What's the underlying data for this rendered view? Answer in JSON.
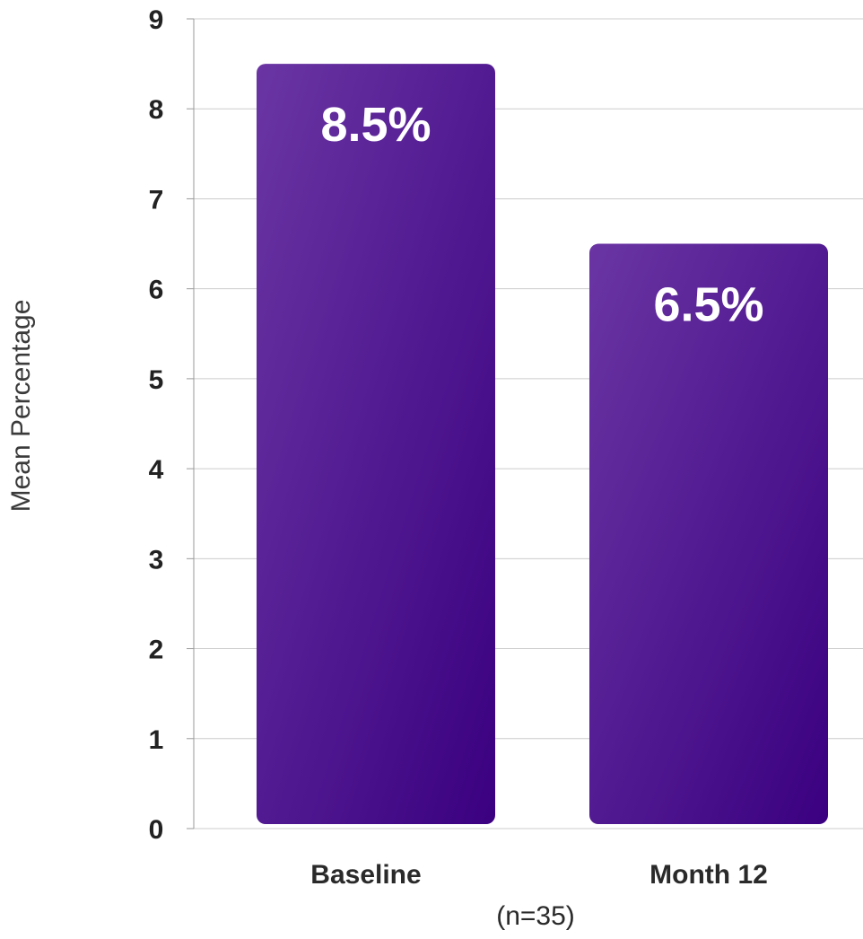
{
  "chart_data": {
    "type": "bar",
    "categories": [
      "Baseline",
      "Month 12"
    ],
    "values": [
      8.5,
      6.5
    ],
    "value_labels": [
      "8.5%",
      "6.5%"
    ],
    "ylabel": "Mean Percentage",
    "xlabel": "(n=35)",
    "ylim": [
      0,
      9
    ],
    "yticks": [
      "0",
      "1",
      "2",
      "3",
      "4",
      "5",
      "6",
      "7",
      "8",
      "9"
    ],
    "grid": true,
    "legend": "none",
    "colors": {
      "bar_light": "#6a35a3",
      "bar_dark": "#3a0080",
      "grid": "#cccccc",
      "axis": "#999999"
    }
  }
}
